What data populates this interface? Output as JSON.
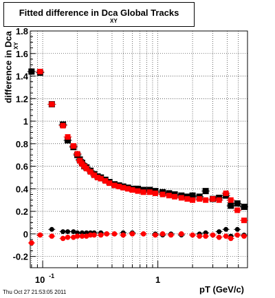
{
  "title": {
    "main": "Fitted difference in Dca     Global Tracks",
    "subscript": "XY"
  },
  "timestamp": "Thu Oct 27 21:53:05 2011",
  "chart_data": {
    "type": "scatter",
    "title": "Fitted difference in Dca Global Tracks",
    "xlabel": "pT (GeV/c)",
    "ylabel": "difference in Dca",
    "ylabel_subscript": "XY",
    "xscale": "log",
    "xlim": [
      0.078,
      6.0
    ],
    "ylim": [
      -0.3,
      1.8
    ],
    "grid": true,
    "x_tick_labels": [
      {
        "value": 0.1,
        "base": "10",
        "exp": "-1"
      },
      {
        "value": 1,
        "text": "1"
      }
    ],
    "y_ticks": [
      -0.2,
      0,
      0.2,
      0.4,
      0.6,
      0.8,
      1,
      1.2,
      1.4,
      1.6,
      1.8
    ],
    "y_tick_labels": [
      "-0.2",
      "0",
      "0.2",
      "0.4",
      "0.6",
      "0.8",
      "1",
      "1.2",
      "1.4",
      "1.6",
      "1.8"
    ],
    "series": [
      {
        "role": "upper",
        "color": "#000000",
        "points": [
          [
            0.08,
            1.44
          ],
          [
            0.095,
            1.43
          ],
          [
            0.12,
            1.15
          ],
          [
            0.15,
            0.97
          ],
          [
            0.165,
            0.83
          ],
          [
            0.185,
            0.77
          ],
          [
            0.2,
            0.7
          ],
          [
            0.21,
            0.66
          ],
          [
            0.22,
            0.63
          ],
          [
            0.23,
            0.6
          ],
          [
            0.24,
            0.59
          ],
          [
            0.26,
            0.56
          ],
          [
            0.28,
            0.53
          ],
          [
            0.3,
            0.51
          ],
          [
            0.32,
            0.5
          ],
          [
            0.35,
            0.48
          ],
          [
            0.38,
            0.46
          ],
          [
            0.42,
            0.44
          ],
          [
            0.46,
            0.43
          ],
          [
            0.5,
            0.42
          ],
          [
            0.55,
            0.41
          ],
          [
            0.6,
            0.4
          ],
          [
            0.67,
            0.4
          ],
          [
            0.75,
            0.39
          ],
          [
            0.85,
            0.39
          ],
          [
            0.95,
            0.38
          ],
          [
            1.1,
            0.37
          ],
          [
            1.25,
            0.36
          ],
          [
            1.4,
            0.35
          ],
          [
            1.6,
            0.34
          ],
          [
            1.8,
            0.33
          ],
          [
            2.0,
            0.34
          ],
          [
            2.3,
            0.33
          ],
          [
            2.6,
            0.38
          ],
          [
            3.0,
            0.31
          ],
          [
            3.4,
            0.32
          ],
          [
            3.9,
            0.34
          ],
          [
            4.3,
            0.25
          ],
          [
            4.9,
            0.27
          ],
          [
            5.6,
            0.24
          ]
        ]
      },
      {
        "role": "upper",
        "color": "#ff0000",
        "points": [
          [
            0.095,
            1.44
          ],
          [
            0.12,
            1.15
          ],
          [
            0.15,
            0.96
          ],
          [
            0.165,
            0.86
          ],
          [
            0.185,
            0.78
          ],
          [
            0.2,
            0.71
          ],
          [
            0.21,
            0.65
          ],
          [
            0.22,
            0.62
          ],
          [
            0.23,
            0.6
          ],
          [
            0.24,
            0.58
          ],
          [
            0.26,
            0.55
          ],
          [
            0.28,
            0.52
          ],
          [
            0.3,
            0.5
          ],
          [
            0.32,
            0.49
          ],
          [
            0.35,
            0.47
          ],
          [
            0.38,
            0.45
          ],
          [
            0.42,
            0.43
          ],
          [
            0.46,
            0.42
          ],
          [
            0.5,
            0.41
          ],
          [
            0.55,
            0.4
          ],
          [
            0.6,
            0.39
          ],
          [
            0.67,
            0.38
          ],
          [
            0.75,
            0.37
          ],
          [
            0.85,
            0.37
          ],
          [
            0.95,
            0.36
          ],
          [
            1.1,
            0.35
          ],
          [
            1.25,
            0.34
          ],
          [
            1.4,
            0.33
          ],
          [
            1.6,
            0.32
          ],
          [
            1.8,
            0.31
          ],
          [
            2.0,
            0.3
          ],
          [
            2.3,
            0.31
          ],
          [
            2.6,
            0.3
          ],
          [
            3.0,
            0.31
          ],
          [
            3.4,
            0.3
          ],
          [
            3.9,
            0.36
          ],
          [
            4.3,
            0.3
          ],
          [
            4.9,
            0.21
          ],
          [
            5.6,
            0.12
          ]
        ]
      },
      {
        "role": "lower",
        "color": "#000000",
        "points": [
          [
            0.095,
            -0.01
          ],
          [
            0.12,
            0.04
          ],
          [
            0.15,
            0.02
          ],
          [
            0.165,
            0.02
          ],
          [
            0.185,
            0.02
          ],
          [
            0.2,
            0.01
          ],
          [
            0.22,
            0.01
          ],
          [
            0.24,
            0.01
          ],
          [
            0.26,
            0.01
          ],
          [
            0.28,
            0.01
          ],
          [
            0.32,
            0.01
          ],
          [
            0.36,
            0.0
          ],
          [
            0.42,
            0.0
          ],
          [
            0.5,
            0.01
          ],
          [
            0.6,
            0.01
          ],
          [
            0.75,
            0.0
          ],
          [
            0.95,
            0.0
          ],
          [
            1.1,
            -0.01
          ],
          [
            1.3,
            0.0
          ],
          [
            1.6,
            -0.01
          ],
          [
            2.0,
            -0.01
          ],
          [
            2.3,
            0.0
          ],
          [
            2.6,
            0.01
          ],
          [
            3.0,
            -0.01
          ],
          [
            3.4,
            0.02
          ],
          [
            3.9,
            0.04
          ],
          [
            4.3,
            -0.02
          ],
          [
            4.9,
            0.04
          ],
          [
            5.6,
            -0.01
          ]
        ]
      },
      {
        "role": "lower",
        "color": "#ff0000",
        "points": [
          [
            0.08,
            -0.08
          ],
          [
            0.095,
            -0.01
          ],
          [
            0.12,
            -0.02
          ],
          [
            0.15,
            -0.04
          ],
          [
            0.165,
            -0.03
          ],
          [
            0.185,
            -0.03
          ],
          [
            0.2,
            -0.02
          ],
          [
            0.22,
            -0.02
          ],
          [
            0.24,
            -0.02
          ],
          [
            0.26,
            -0.01
          ],
          [
            0.28,
            -0.01
          ],
          [
            0.32,
            -0.01
          ],
          [
            0.36,
            0.0
          ],
          [
            0.42,
            0.0
          ],
          [
            0.5,
            -0.01
          ],
          [
            0.6,
            0.0
          ],
          [
            0.75,
            0.0
          ],
          [
            0.95,
            -0.01
          ],
          [
            1.1,
            0.0
          ],
          [
            1.3,
            -0.01
          ],
          [
            1.6,
            0.0
          ],
          [
            2.0,
            -0.01
          ],
          [
            2.3,
            -0.02
          ],
          [
            2.6,
            -0.02
          ],
          [
            3.0,
            -0.01
          ],
          [
            3.4,
            -0.03
          ],
          [
            3.9,
            -0.02
          ],
          [
            4.3,
            -0.04
          ],
          [
            4.9,
            -0.01
          ],
          [
            5.6,
            -0.02
          ]
        ]
      }
    ]
  }
}
